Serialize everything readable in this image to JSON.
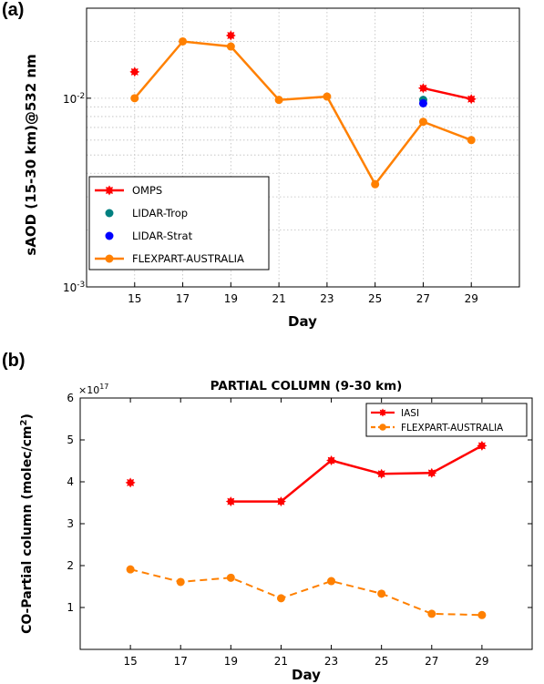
{
  "chart_data": [
    {
      "panel_label": "(a)",
      "type": "line",
      "title": "",
      "xlabel": "Day",
      "ylabel": "sAOD (15-30 km)@532 nm",
      "yscale": "log",
      "xlim": [
        13,
        31
      ],
      "ylim": [
        0.001,
        0.03
      ],
      "xticks": [
        "15",
        "17",
        "19",
        "21",
        "23",
        "25",
        "27",
        "29"
      ],
      "yticks": [
        {
          "value": 0.001,
          "base": "10",
          "exp": "-3"
        },
        {
          "value": 0.01,
          "base": "10",
          "exp": "-2"
        }
      ],
      "grid": true,
      "legend_position": "lower-left",
      "series": [
        {
          "name": "OMPS",
          "color": "#ff0000",
          "marker": "star",
          "segments": [
            [
              {
                "x": 15,
                "y": 0.0138
              }
            ],
            [
              {
                "x": 19,
                "y": 0.0215
              }
            ],
            [
              {
                "x": 27,
                "y": 0.0113
              },
              {
                "x": 29,
                "y": 0.0099
              }
            ]
          ]
        },
        {
          "name": "LIDAR-Trop",
          "color": "#008080",
          "marker": "dot",
          "segments": [
            [
              {
                "x": 27,
                "y": 0.0098
              }
            ]
          ]
        },
        {
          "name": "LIDAR-Strat",
          "color": "#0000ff",
          "marker": "dot",
          "segments": [
            [
              {
                "x": 27,
                "y": 0.0094
              }
            ]
          ]
        },
        {
          "name": "FLEXPART-AUSTRALIA",
          "color": "#ff8000",
          "marker": "dot",
          "segments": [
            [
              {
                "x": 15,
                "y": 0.01
              },
              {
                "x": 17,
                "y": 0.02
              },
              {
                "x": 19,
                "y": 0.0188
              },
              {
                "x": 21,
                "y": 0.0098
              },
              {
                "x": 23,
                "y": 0.0102
              },
              {
                "x": 25,
                "y": 0.0035
              },
              {
                "x": 27,
                "y": 0.0075
              },
              {
                "x": 29,
                "y": 0.006
              }
            ]
          ]
        }
      ]
    },
    {
      "panel_label": "(b)",
      "type": "line",
      "title": "PARTIAL COLUMN (9-30 km)",
      "xlabel": "Day",
      "ylabel": "CO-Partial column (molec/cm",
      "ylabel_sup": "2",
      "ylabel_close": ")",
      "y_multiplier_base": "×10",
      "y_multiplier_exp": "17",
      "xlim": [
        13,
        31
      ],
      "ylim": [
        0,
        6
      ],
      "xticks": [
        "15",
        "17",
        "19",
        "21",
        "23",
        "25",
        "27",
        "29"
      ],
      "yticks": [
        "1",
        "2",
        "3",
        "4",
        "5",
        "6"
      ],
      "grid": false,
      "legend_position": "top-right",
      "series": [
        {
          "name": "IASI",
          "color": "#ff0000",
          "marker": "star",
          "dashed": false,
          "segments": [
            [
              {
                "x": 15,
                "y": 3.98
              }
            ],
            [
              {
                "x": 19,
                "y": 3.53
              },
              {
                "x": 21,
                "y": 3.53
              },
              {
                "x": 23,
                "y": 4.51
              },
              {
                "x": 25,
                "y": 4.19
              },
              {
                "x": 27,
                "y": 4.21
              },
              {
                "x": 29,
                "y": 4.86
              }
            ]
          ]
        },
        {
          "name": "FLEXPART-AUSTRALIA",
          "color": "#ff8000",
          "marker": "dot",
          "dashed": true,
          "segments": [
            [
              {
                "x": 15,
                "y": 1.91
              },
              {
                "x": 17,
                "y": 1.61
              },
              {
                "x": 19,
                "y": 1.71
              },
              {
                "x": 21,
                "y": 1.22
              },
              {
                "x": 23,
                "y": 1.63
              },
              {
                "x": 25,
                "y": 1.33
              },
              {
                "x": 27,
                "y": 0.85
              },
              {
                "x": 29,
                "y": 0.82
              }
            ]
          ]
        }
      ]
    }
  ]
}
